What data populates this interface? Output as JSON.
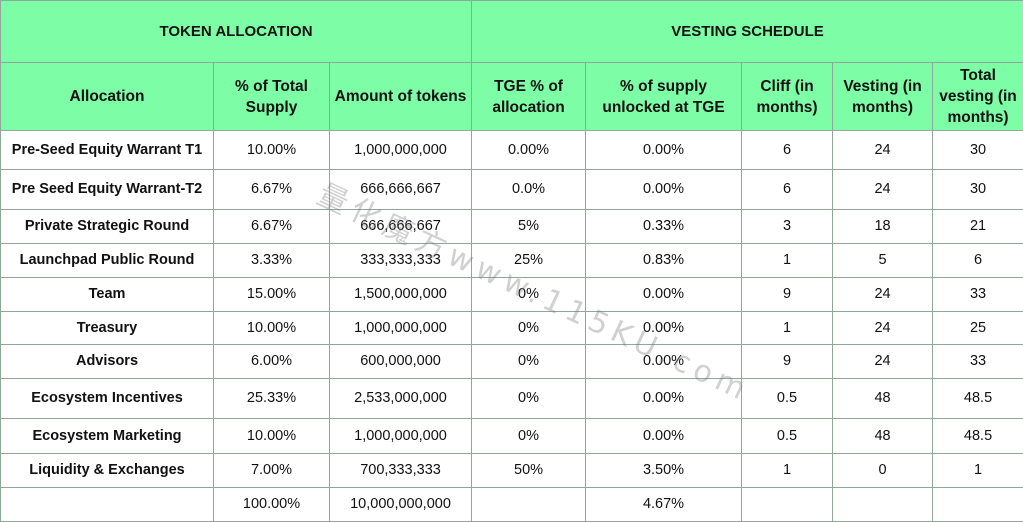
{
  "sections": {
    "allocation": "TOKEN ALLOCATION",
    "vesting": "VESTING SCHEDULE"
  },
  "headers": {
    "allocation": "Allocation",
    "pct_total_supply": "% of Total Supply",
    "amount_tokens": "Amount of tokens",
    "tge_pct": "TGE % of allocation",
    "pct_unlocked_tge": "% of supply unlocked at TGE",
    "cliff": "Cliff (in months)",
    "vesting": "Vesting (in months)",
    "total_vesting": "Total vesting (in months)"
  },
  "rows": [
    {
      "allocation": "Pre-Seed Equity Warrant T1",
      "pct_total": "10.00%",
      "amount": "1,000,000,000",
      "tge_pct": "0.00%",
      "unlocked": "0.00%",
      "cliff": "6",
      "vesting": "24",
      "total": "30"
    },
    {
      "allocation": "Pre Seed Equity Warrant-T2",
      "pct_total": "6.67%",
      "amount": "666,666,667",
      "tge_pct": "0.0%",
      "unlocked": "0.00%",
      "cliff": "6",
      "vesting": "24",
      "total": "30"
    },
    {
      "allocation": "Private Strategic Round",
      "pct_total": "6.67%",
      "amount": "666,666,667",
      "tge_pct": "5%",
      "unlocked": "0.33%",
      "cliff": "3",
      "vesting": "18",
      "total": "21"
    },
    {
      "allocation": "Launchpad Public Round",
      "pct_total": "3.33%",
      "amount": "333,333,333",
      "tge_pct": "25%",
      "unlocked": "0.83%",
      "cliff": "1",
      "vesting": "5",
      "total": "6"
    },
    {
      "allocation": "Team",
      "pct_total": "15.00%",
      "amount": "1,500,000,000",
      "tge_pct": "0%",
      "unlocked": "0.00%",
      "cliff": "9",
      "vesting": "24",
      "total": "33"
    },
    {
      "allocation": "Treasury",
      "pct_total": "10.00%",
      "amount": "1,000,000,000",
      "tge_pct": "0%",
      "unlocked": "0.00%",
      "cliff": "1",
      "vesting": "24",
      "total": "25"
    },
    {
      "allocation": "Advisors",
      "pct_total": "6.00%",
      "amount": "600,000,000",
      "tge_pct": "0%",
      "unlocked": "0.00%",
      "cliff": "9",
      "vesting": "24",
      "total": "33"
    },
    {
      "allocation": "Ecosystem Incentives",
      "pct_total": "25.33%",
      "amount": "2,533,000,000",
      "tge_pct": "0%",
      "unlocked": "0.00%",
      "cliff": "0.5",
      "vesting": "48",
      "total": "48.5"
    },
    {
      "allocation": "Ecosystem Marketing",
      "pct_total": "10.00%",
      "amount": "1,000,000,000",
      "tge_pct": "0%",
      "unlocked": "0.00%",
      "cliff": "0.5",
      "vesting": "48",
      "total": "48.5"
    },
    {
      "allocation": "Liquidity & Exchanges",
      "pct_total": "7.00%",
      "amount": "700,333,333",
      "tge_pct": "50%",
      "unlocked": "3.50%",
      "cliff": "1",
      "vesting": "0",
      "total": "1"
    }
  ],
  "totals": {
    "pct_total": "100.00%",
    "amount": "10,000,000,000",
    "unlocked": "4.67%"
  },
  "watermark": "量化魔方www.115KU.com",
  "colors": {
    "header_bg": "#7dfda6",
    "border": "#8fa89a"
  }
}
